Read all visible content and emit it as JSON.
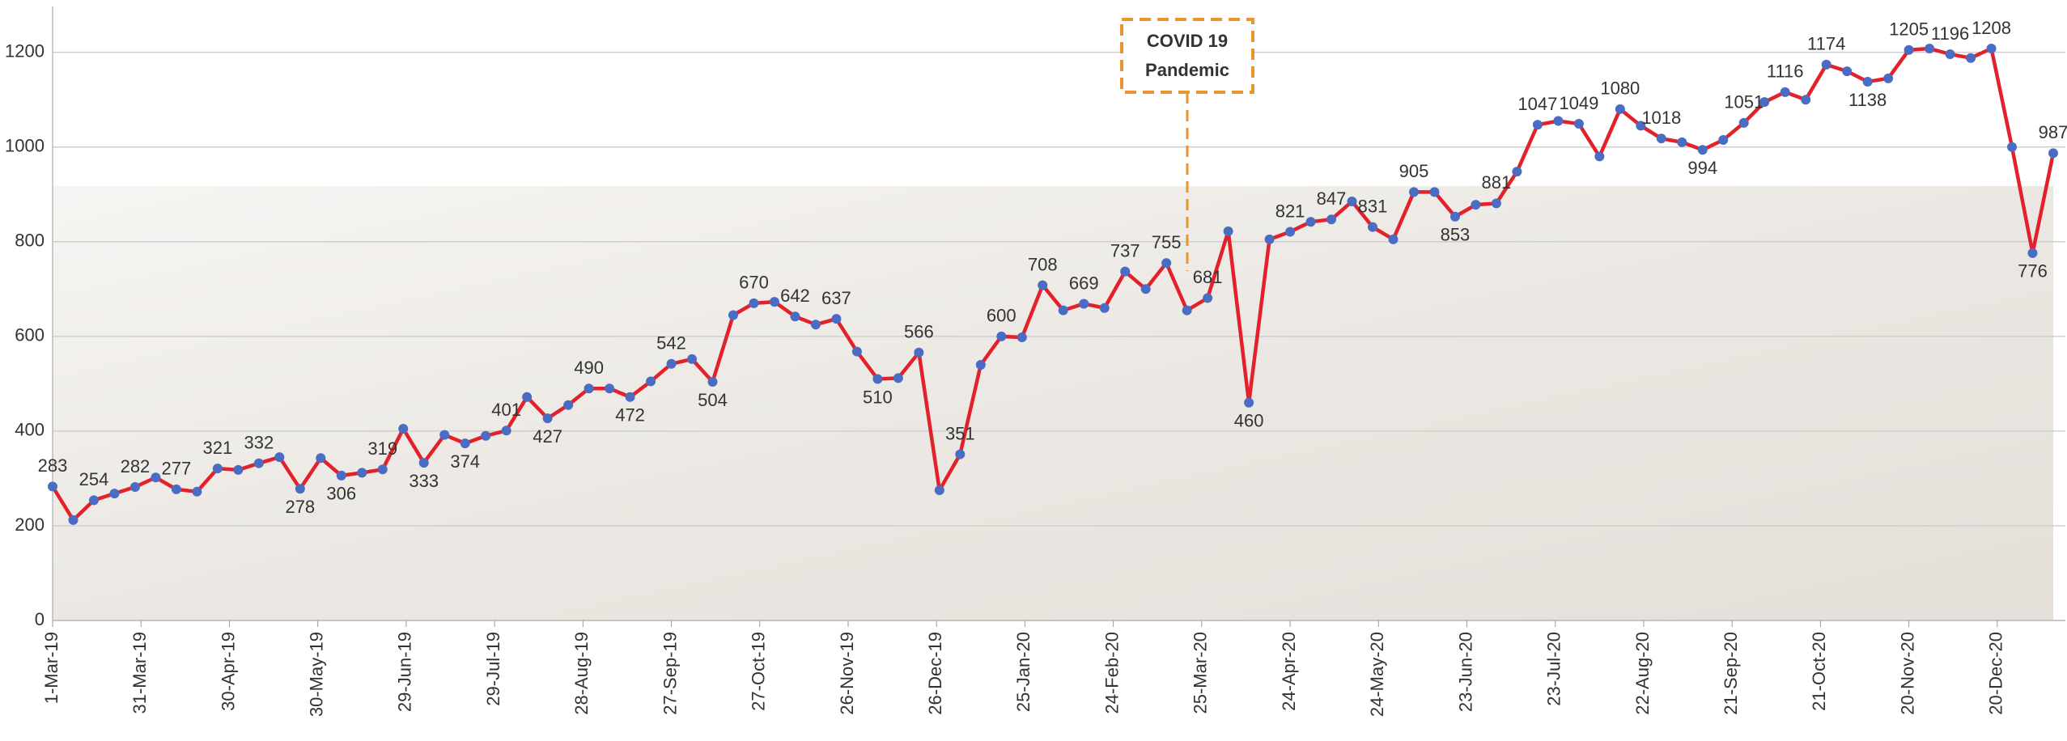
{
  "chart_data": {
    "type": "line",
    "annotation": [
      "COVID 19",
      "Pandemic"
    ],
    "x": [
      0,
      7,
      14,
      21,
      28,
      35,
      42,
      49,
      56,
      63,
      70,
      77,
      84,
      91,
      98,
      105,
      112,
      119,
      126,
      133,
      140,
      147,
      154,
      161,
      168,
      175,
      182,
      189,
      196,
      203,
      210,
      217,
      224,
      231,
      238,
      245,
      252,
      259,
      266,
      273,
      280,
      287,
      294,
      301,
      308,
      315,
      322,
      329,
      336,
      343,
      350,
      357,
      364,
      371,
      378,
      385,
      392,
      399,
      406,
      413,
      420,
      427,
      434,
      441,
      448,
      455,
      462,
      469,
      476,
      483,
      490,
      497,
      504,
      511,
      518,
      525,
      532,
      539,
      546,
      553,
      560,
      567,
      574,
      581,
      588,
      595,
      602,
      609,
      616,
      623,
      630,
      637,
      644,
      651,
      658,
      665,
      672,
      679
    ],
    "series": [
      {
        "color": "#e3212b",
        "marker_color": "#4a6cc2",
        "values": [
          283,
          212,
          254,
          268,
          282,
          302,
          277,
          272,
          321,
          318,
          332,
          345,
          278,
          343,
          306,
          312,
          319,
          405,
          333,
          392,
          374,
          390,
          401,
          472,
          427,
          455,
          490,
          490,
          472,
          505,
          542,
          552,
          504,
          645,
          670,
          673,
          642,
          625,
          637,
          568,
          510,
          512,
          566,
          275,
          351,
          540,
          600,
          598,
          708,
          655,
          669,
          660,
          737,
          700,
          755,
          655,
          681,
          822,
          460,
          805,
          821,
          842,
          847,
          885,
          831,
          805,
          905,
          905,
          853,
          878,
          881,
          948,
          1047,
          1055,
          1049,
          980,
          1080,
          1045,
          1018,
          1010,
          994,
          1015,
          1051,
          1095,
          1116,
          1100,
          1174,
          1160,
          1138,
          1145,
          1205,
          1208,
          1196,
          1188,
          1208,
          1000,
          776,
          987
        ],
        "value_labels": [
          "283",
          null,
          "254",
          null,
          "282",
          null,
          "277",
          null,
          "321",
          null,
          "332",
          null,
          "278",
          null,
          "306",
          null,
          "319",
          null,
          "333",
          null,
          "374",
          null,
          "401",
          null,
          "427",
          null,
          "490",
          null,
          "472",
          null,
          "542",
          null,
          "504",
          null,
          "670",
          null,
          "642",
          null,
          "637",
          null,
          "510",
          null,
          "566",
          null,
          "351",
          null,
          "600",
          null,
          "708",
          null,
          "669",
          null,
          "737",
          null,
          "755",
          null,
          "681",
          null,
          "460",
          null,
          "821",
          null,
          "847",
          null,
          "831",
          null,
          "905",
          null,
          "853",
          null,
          "881",
          null,
          "1047",
          null,
          "1049",
          null,
          "1080",
          null,
          "1018",
          null,
          "994",
          null,
          "1051",
          null,
          "1116",
          null,
          "1174",
          null,
          "1138",
          null,
          "1205",
          null,
          "1196",
          null,
          "1208",
          null,
          "776",
          "987"
        ]
      }
    ],
    "xlim": [
      0,
      679
    ],
    "xticks": [
      {
        "value": 0,
        "label": "1-Mar-19"
      },
      {
        "value": 30,
        "label": "31-Mar-19"
      },
      {
        "value": 60,
        "label": "30-Apr-19"
      },
      {
        "value": 90,
        "label": "30-May-19"
      },
      {
        "value": 120,
        "label": "29-Jun-19"
      },
      {
        "value": 150,
        "label": "29-Jul-19"
      },
      {
        "value": 180,
        "label": "28-Aug-19"
      },
      {
        "value": 210,
        "label": "27-Sep-19"
      },
      {
        "value": 240,
        "label": "27-Oct-19"
      },
      {
        "value": 270,
        "label": "26-Nov-19"
      },
      {
        "value": 300,
        "label": "26-Dec-19"
      },
      {
        "value": 330,
        "label": "25-Jan-20"
      },
      {
        "value": 360,
        "label": "24-Feb-20"
      },
      {
        "value": 390,
        "label": "25-Mar-20"
      },
      {
        "value": 420,
        "label": "24-Apr-20"
      },
      {
        "value": 450,
        "label": "24-May-20"
      },
      {
        "value": 480,
        "label": "23-Jun-20"
      },
      {
        "value": 510,
        "label": "23-Jul-20"
      },
      {
        "value": 540,
        "label": "22-Aug-20"
      },
      {
        "value": 570,
        "label": "21-Sep-20"
      },
      {
        "value": 600,
        "label": "21-Oct-20"
      },
      {
        "value": 630,
        "label": "20-Nov-20"
      },
      {
        "value": 660,
        "label": "20-Dec-20"
      }
    ],
    "ylim": [
      0,
      1290
    ],
    "yticks": [
      0,
      200,
      400,
      600,
      800,
      1000,
      1200
    ],
    "grid": true
  }
}
